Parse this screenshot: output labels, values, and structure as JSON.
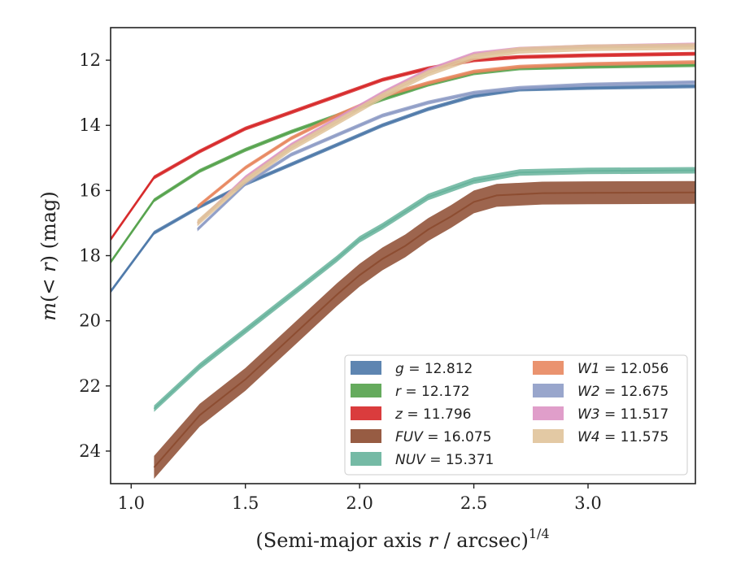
{
  "chart_data": {
    "type": "line",
    "title": "",
    "xlabel": "(Semi-major axis r / arcsec)",
    "xlabel_parts": {
      "prefix": "(Semi-major axis ",
      "var": "r",
      "suffix": " / arcsec)",
      "exponent": "1/4"
    },
    "ylabel_parts": {
      "m": "m",
      "open": "(",
      "lt": "< ",
      "r": "r",
      "close": ")",
      "unit": " (mag)"
    },
    "xlim": [
      0.91,
      3.47
    ],
    "ylim": [
      25.0,
      11.0
    ],
    "y_inverted": true,
    "x_ticks": [
      1.0,
      1.5,
      2.0,
      2.5,
      3.0
    ],
    "x_tick_labels": [
      "1.0",
      "1.5",
      "2.0",
      "2.5",
      "3.0"
    ],
    "y_ticks": [
      12,
      14,
      16,
      18,
      20,
      22,
      24
    ],
    "y_tick_labels": [
      "12",
      "14",
      "16",
      "18",
      "20",
      "22",
      "24"
    ],
    "grid": false,
    "legend_placement": "lower-right",
    "series": [
      {
        "name": "g",
        "total": "12.812",
        "color": "#4c78a8",
        "band": 0.06,
        "x": [
          0.91,
          1.1,
          1.3,
          1.5,
          1.7,
          1.9,
          2.1,
          2.3,
          2.5,
          2.7,
          3.0,
          3.47
        ],
        "y": [
          19.1,
          17.3,
          16.5,
          15.8,
          15.2,
          14.6,
          14.0,
          13.5,
          13.1,
          12.9,
          12.85,
          12.8
        ]
      },
      {
        "name": "r",
        "total": "12.172",
        "color": "#54a24b",
        "band": 0.06,
        "x": [
          0.91,
          1.1,
          1.3,
          1.5,
          1.7,
          1.9,
          2.1,
          2.3,
          2.5,
          2.7,
          3.0,
          3.47
        ],
        "y": [
          18.2,
          16.3,
          15.4,
          14.75,
          14.2,
          13.7,
          13.2,
          12.75,
          12.4,
          12.25,
          12.2,
          12.15
        ]
      },
      {
        "name": "z",
        "total": "11.796",
        "color": "#d62728",
        "band": 0.06,
        "x": [
          0.91,
          1.1,
          1.3,
          1.5,
          1.7,
          1.9,
          2.1,
          2.3,
          2.5,
          2.7,
          3.0,
          3.47
        ],
        "y": [
          17.5,
          15.6,
          14.8,
          14.1,
          13.6,
          13.1,
          12.6,
          12.25,
          12.0,
          11.9,
          11.85,
          11.8
        ]
      },
      {
        "name": "FUV",
        "total": "16.075",
        "color": "#8c4a2f",
        "band": 0.35,
        "x": [
          1.1,
          1.3,
          1.5,
          1.7,
          1.9,
          2.0,
          2.1,
          2.2,
          2.3,
          2.4,
          2.5,
          2.6,
          2.8,
          3.0,
          3.47
        ],
        "y": [
          24.5,
          22.9,
          21.8,
          20.5,
          19.2,
          18.6,
          18.1,
          17.7,
          17.2,
          16.8,
          16.35,
          16.15,
          16.08,
          16.07,
          16.06
        ]
      },
      {
        "name": "NUV",
        "total": "15.371",
        "color": "#66b39b",
        "band": 0.1,
        "x": [
          1.1,
          1.3,
          1.5,
          1.7,
          1.9,
          2.0,
          2.1,
          2.3,
          2.5,
          2.7,
          3.0,
          3.47
        ],
        "y": [
          22.7,
          21.4,
          20.3,
          19.2,
          18.1,
          17.5,
          17.1,
          16.2,
          15.7,
          15.45,
          15.4,
          15.38
        ]
      },
      {
        "name": "W1",
        "total": "12.056",
        "color": "#e8875f",
        "band": 0.06,
        "x": [
          1.29,
          1.5,
          1.7,
          1.9,
          2.1,
          2.3,
          2.5,
          2.7,
          3.0,
          3.47
        ],
        "y": [
          16.5,
          15.3,
          14.4,
          13.7,
          13.1,
          12.7,
          12.35,
          12.2,
          12.12,
          12.06
        ]
      },
      {
        "name": "W2",
        "total": "12.675",
        "color": "#8e9cc6",
        "band": 0.06,
        "x": [
          1.29,
          1.5,
          1.7,
          1.9,
          2.1,
          2.3,
          2.5,
          2.7,
          3.0,
          3.47
        ],
        "y": [
          17.2,
          15.8,
          14.9,
          14.3,
          13.7,
          13.3,
          13.0,
          12.85,
          12.75,
          12.68
        ]
      },
      {
        "name": "W3",
        "total": "11.517",
        "color": "#dd94c4",
        "band": 0.06,
        "x": [
          1.29,
          1.5,
          1.7,
          1.9,
          2.1,
          2.3,
          2.5,
          2.7,
          3.0,
          3.47
        ],
        "y": [
          17.0,
          15.6,
          14.6,
          13.8,
          13.0,
          12.3,
          11.8,
          11.65,
          11.58,
          11.52
        ]
      },
      {
        "name": "W4",
        "total": "11.575",
        "color": "#e0c39a",
        "band": 0.1,
        "x": [
          1.29,
          1.5,
          1.7,
          1.9,
          2.1,
          2.3,
          2.5,
          2.7,
          3.0,
          3.47
        ],
        "y": [
          17.0,
          15.7,
          14.7,
          13.9,
          13.1,
          12.4,
          11.9,
          11.7,
          11.62,
          11.58
        ]
      }
    ]
  }
}
